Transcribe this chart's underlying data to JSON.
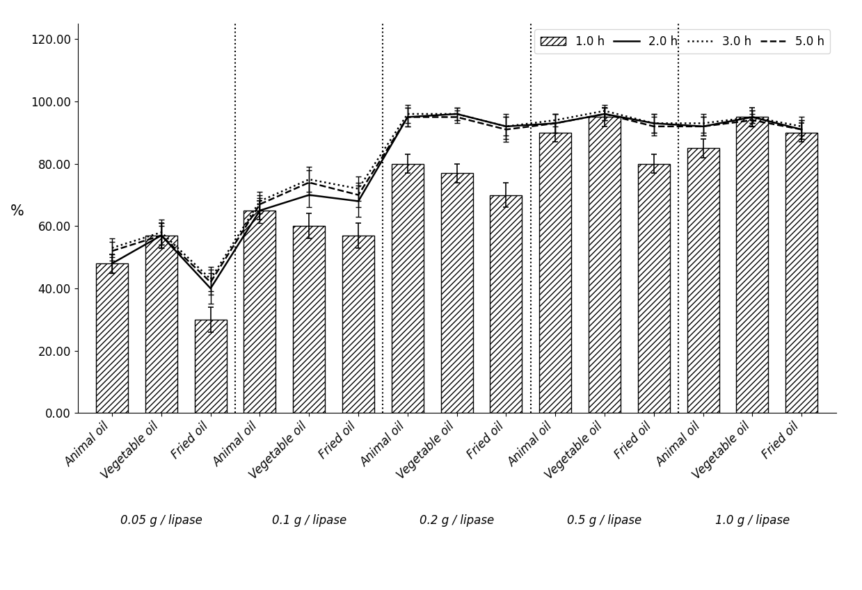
{
  "categories": [
    "Animal oil",
    "Vegetable oil",
    "Fried oil",
    "Animal oil",
    "Vegetable oil",
    "Fried oil",
    "Animal oil",
    "Vegetable oil",
    "Fried oil",
    "Animal oil",
    "Vegetable oil",
    "Fried oil",
    "Animal oil",
    "Vegetable oil",
    "Fried oil"
  ],
  "group_labels": [
    "0.05 g / lipase",
    "0.1 g / lipase",
    "0.2 g / lipase",
    "0.5 g / lipase",
    "1.0 g / lipase"
  ],
  "group_centers": [
    1,
    4,
    7,
    10,
    13
  ],
  "bar_values": [
    48,
    57,
    30,
    65,
    60,
    57,
    80,
    77,
    70,
    90,
    95,
    80,
    85,
    95,
    90
  ],
  "line_2h": [
    48,
    57,
    40,
    65,
    70,
    68,
    95,
    96,
    92,
    93,
    96,
    93,
    92,
    95,
    91
  ],
  "line_3h": [
    53,
    58,
    43,
    68,
    75,
    72,
    96,
    96,
    92,
    94,
    97,
    93,
    93,
    95,
    92
  ],
  "line_5h": [
    52,
    57,
    42,
    67,
    74,
    70,
    95,
    95,
    91,
    93,
    96,
    92,
    92,
    94,
    91
  ],
  "err_bar": [
    3,
    4,
    4,
    3,
    4,
    4,
    3,
    3,
    4,
    3,
    3,
    3,
    3,
    3,
    3
  ],
  "err_line_2h": [
    3,
    4,
    5,
    4,
    4,
    5,
    3,
    2,
    4,
    3,
    2,
    3,
    3,
    2,
    3
  ],
  "err_line_3h": [
    3,
    4,
    4,
    3,
    4,
    4,
    3,
    2,
    3,
    2,
    2,
    3,
    3,
    2,
    3
  ],
  "err_line_5h": [
    3,
    3,
    4,
    3,
    4,
    4,
    3,
    2,
    4,
    3,
    2,
    3,
    3,
    2,
    3
  ],
  "dividers": [
    2.5,
    5.5,
    8.5,
    11.5
  ],
  "ylabel": "%",
  "ylim": [
    0,
    125
  ],
  "yticks": [
    0,
    20,
    40,
    60,
    80,
    100,
    120
  ],
  "ytick_labels": [
    "0.00",
    "20.00",
    "40.00",
    "60.00",
    "80.00",
    "100.00",
    "120.00"
  ],
  "legend_labels": [
    "1.0 h",
    "2.0 h",
    "3.0 h",
    "5.0 h"
  ],
  "fontsize": 12
}
